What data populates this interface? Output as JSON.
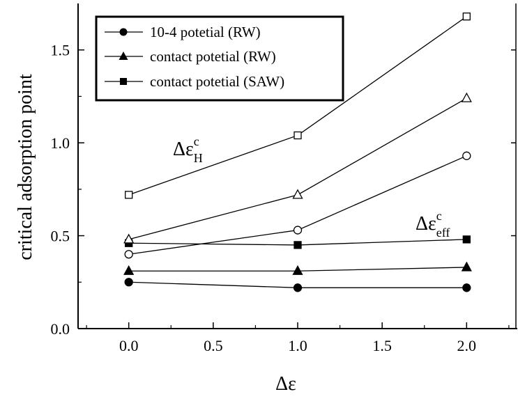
{
  "chart_data": {
    "type": "line",
    "xlabel": "Δε",
    "ylabel": "critical adsorption point",
    "xlim": [
      -0.3,
      2.3
    ],
    "ylim": [
      0.0,
      1.75
    ],
    "x_ticks": [
      0.0,
      0.5,
      1.0,
      1.5,
      2.0
    ],
    "x_tick_labels": [
      "0.0",
      "0.5",
      "1.0",
      "1.5",
      "2.0"
    ],
    "y_ticks": [
      0.0,
      0.5,
      1.0,
      1.5
    ],
    "y_tick_labels": [
      "0.0",
      "0.5",
      "1.0",
      "1.5"
    ],
    "x": [
      0.0,
      1.0,
      2.0
    ],
    "grid": false,
    "legend_position": "top-left",
    "series": [
      {
        "name": "10-4 potetial (RW)",
        "marker": "circle",
        "fill": "filled",
        "values": [
          0.25,
          0.22,
          0.22
        ]
      },
      {
        "name": "contact potetial (RW)",
        "marker": "triangle",
        "fill": "filled",
        "values": [
          0.31,
          0.31,
          0.33
        ]
      },
      {
        "name": "contact potetial (SAW)",
        "marker": "square",
        "fill": "filled",
        "values": [
          0.46,
          0.45,
          0.48
        ]
      },
      {
        "name": "",
        "marker": "circle",
        "fill": "open",
        "values": [
          0.4,
          0.53,
          0.93
        ]
      },
      {
        "name": "",
        "marker": "triangle",
        "fill": "open",
        "values": [
          0.48,
          0.72,
          1.24
        ]
      },
      {
        "name": "",
        "marker": "square",
        "fill": "open",
        "values": [
          0.72,
          1.04,
          1.68
        ]
      }
    ],
    "annotations": [
      {
        "base": "Δε",
        "sup": "c",
        "sub": "H"
      },
      {
        "base": "Δε",
        "sup": "c",
        "sub": "eff"
      }
    ]
  }
}
